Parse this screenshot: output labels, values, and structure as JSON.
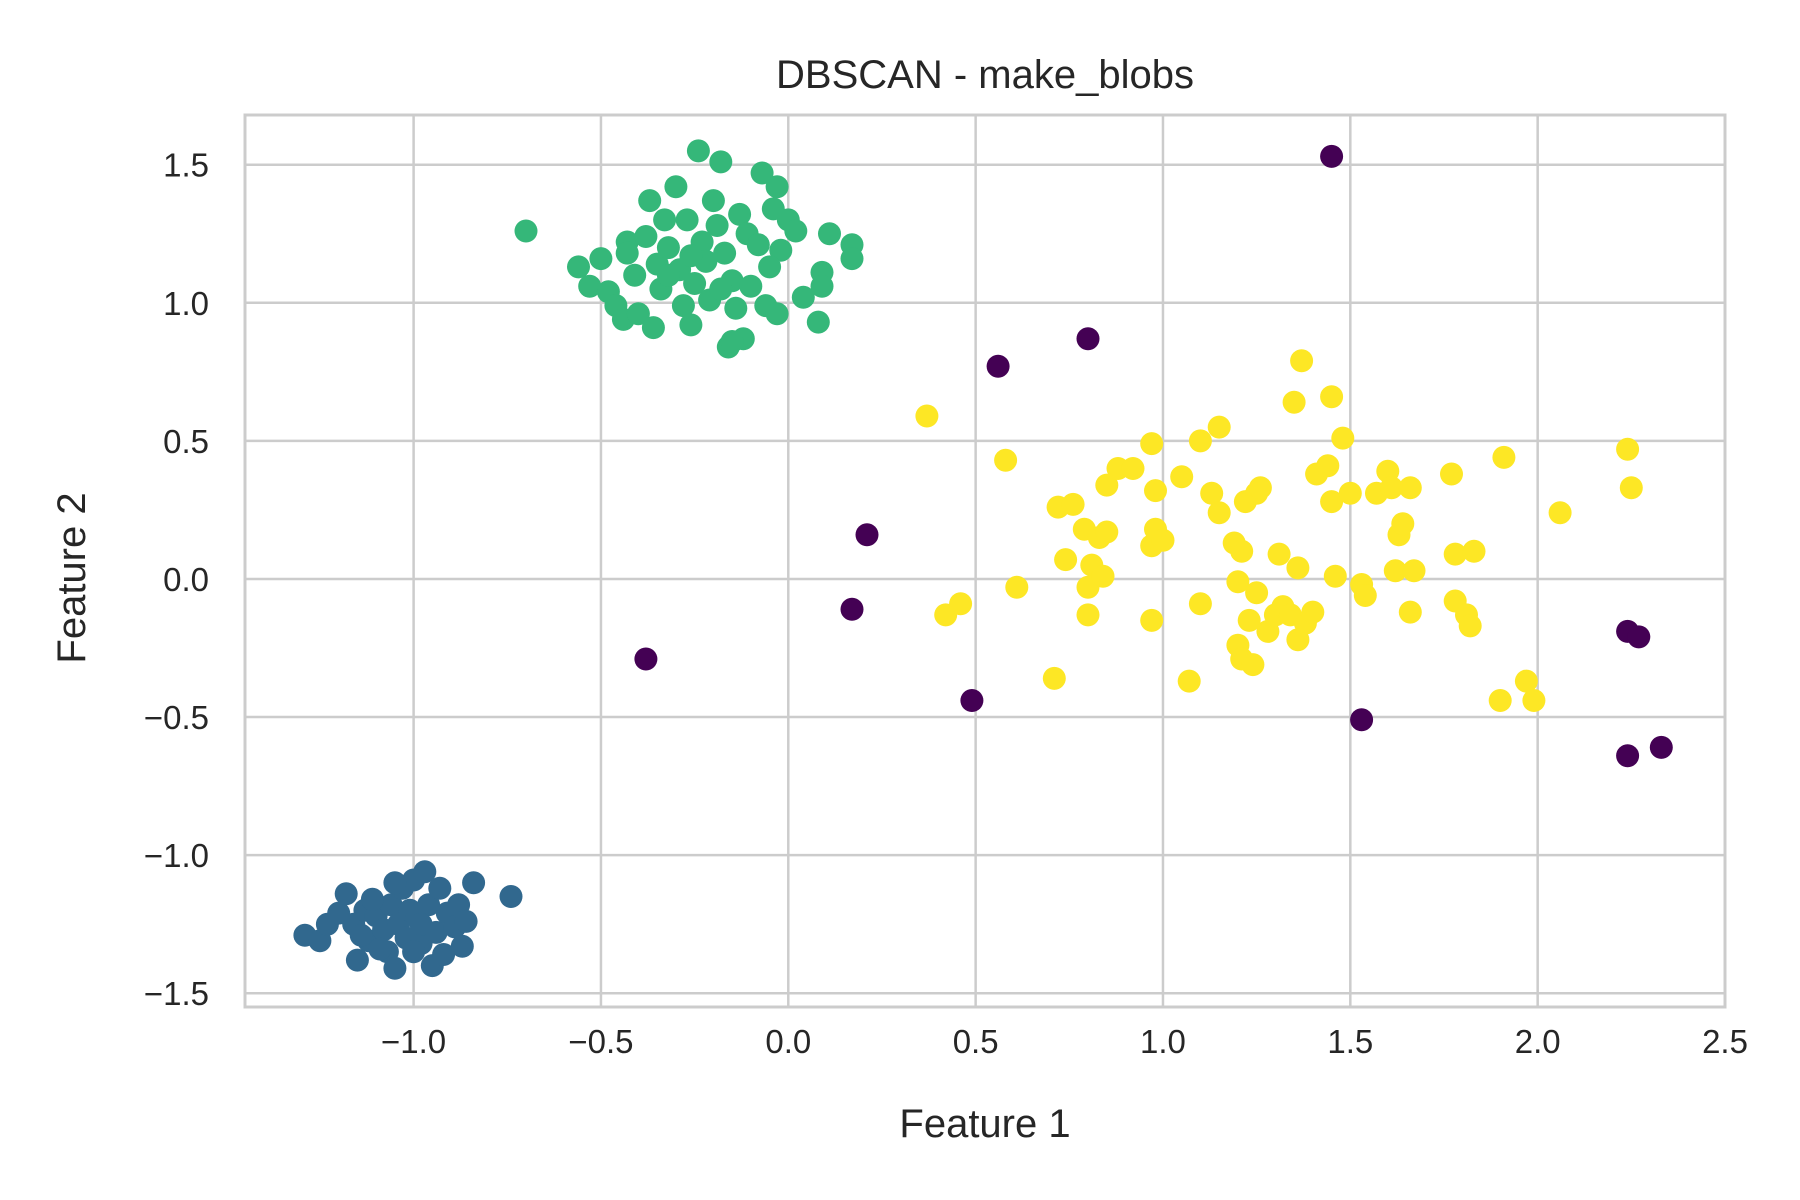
{
  "chart_data": {
    "type": "scatter",
    "title": "DBSCAN - make_blobs",
    "xlabel": "Feature 1",
    "ylabel": "Feature 2",
    "xlim": [
      -1.45,
      2.5
    ],
    "ylim": [
      -1.55,
      1.68
    ],
    "x_ticks": [
      -1.0,
      -0.5,
      0.0,
      0.5,
      1.0,
      1.5,
      2.0,
      2.5
    ],
    "x_tick_labels": [
      "−1.0",
      "−0.5",
      "0.0",
      "0.5",
      "1.0",
      "1.5",
      "2.0",
      "2.5"
    ],
    "y_ticks": [
      -1.5,
      -1.0,
      -0.5,
      0.0,
      0.5,
      1.0,
      1.5
    ],
    "y_tick_labels": [
      "−1.5",
      "−1.0",
      "−0.5",
      "0.0",
      "0.5",
      "1.0",
      "1.5"
    ],
    "grid": true,
    "legend": "none",
    "series": [
      {
        "color": "#440154",
        "points": [
          [
            1.45,
            1.53
          ],
          [
            0.8,
            0.87
          ],
          [
            0.56,
            0.77
          ],
          [
            0.21,
            0.16
          ],
          [
            0.17,
            -0.11
          ],
          [
            -0.38,
            -0.29
          ],
          [
            0.49,
            -0.44
          ],
          [
            1.53,
            -0.51
          ],
          [
            2.24,
            -0.19
          ],
          [
            2.27,
            -0.21
          ],
          [
            2.24,
            -0.64
          ],
          [
            2.33,
            -0.61
          ]
        ]
      },
      {
        "color": "#31688e",
        "points": [
          [
            -1.29,
            -1.29
          ],
          [
            -1.25,
            -1.31
          ],
          [
            -1.23,
            -1.25
          ],
          [
            -1.2,
            -1.21
          ],
          [
            -1.18,
            -1.14
          ],
          [
            -1.16,
            -1.25
          ],
          [
            -1.15,
            -1.38
          ],
          [
            -1.13,
            -1.2
          ],
          [
            -1.12,
            -1.31
          ],
          [
            -1.1,
            -1.22
          ],
          [
            -1.08,
            -1.27
          ],
          [
            -1.07,
            -1.35
          ],
          [
            -1.06,
            -1.18
          ],
          [
            -1.05,
            -1.41
          ],
          [
            -1.04,
            -1.25
          ],
          [
            -1.03,
            -1.12
          ],
          [
            -1.02,
            -1.3
          ],
          [
            -1.01,
            -1.2
          ],
          [
            -1.0,
            -1.09
          ],
          [
            -0.99,
            -1.22
          ],
          [
            -0.98,
            -1.32
          ],
          [
            -0.97,
            -1.06
          ],
          [
            -0.96,
            -1.18
          ],
          [
            -0.95,
            -1.4
          ],
          [
            -0.94,
            -1.28
          ],
          [
            -0.93,
            -1.12
          ],
          [
            -0.92,
            -1.36
          ],
          [
            -0.91,
            -1.21
          ],
          [
            -0.89,
            -1.26
          ],
          [
            -0.88,
            -1.18
          ],
          [
            -0.87,
            -1.33
          ],
          [
            -0.86,
            -1.24
          ],
          [
            -0.84,
            -1.1
          ],
          [
            -0.74,
            -1.15
          ],
          [
            -1.11,
            -1.16
          ],
          [
            -1.09,
            -1.34
          ],
          [
            -0.98,
            -1.25
          ],
          [
            -1.0,
            -1.35
          ],
          [
            -1.14,
            -1.29
          ],
          [
            -1.05,
            -1.1
          ]
        ]
      },
      {
        "color": "#35b779",
        "points": [
          [
            -0.7,
            1.26
          ],
          [
            -0.56,
            1.13
          ],
          [
            -0.53,
            1.06
          ],
          [
            -0.5,
            1.16
          ],
          [
            -0.48,
            1.04
          ],
          [
            -0.46,
            0.99
          ],
          [
            -0.44,
            0.94
          ],
          [
            -0.43,
            1.22
          ],
          [
            -0.41,
            1.1
          ],
          [
            -0.4,
            0.96
          ],
          [
            -0.38,
            1.24
          ],
          [
            -0.37,
            1.37
          ],
          [
            -0.36,
            0.91
          ],
          [
            -0.35,
            1.14
          ],
          [
            -0.34,
            1.05
          ],
          [
            -0.33,
            1.3
          ],
          [
            -0.32,
            1.2
          ],
          [
            -0.3,
            1.42
          ],
          [
            -0.29,
            1.12
          ],
          [
            -0.28,
            0.99
          ],
          [
            -0.27,
            1.3
          ],
          [
            -0.26,
            0.92
          ],
          [
            -0.25,
            1.07
          ],
          [
            -0.24,
            1.55
          ],
          [
            -0.23,
            1.22
          ],
          [
            -0.22,
            1.15
          ],
          [
            -0.21,
            1.01
          ],
          [
            -0.2,
            1.37
          ],
          [
            -0.19,
            1.28
          ],
          [
            -0.18,
            1.51
          ],
          [
            -0.17,
            1.18
          ],
          [
            -0.16,
            0.84
          ],
          [
            -0.15,
            1.08
          ],
          [
            -0.14,
            0.98
          ],
          [
            -0.13,
            1.32
          ],
          [
            -0.12,
            0.87
          ],
          [
            -0.11,
            1.25
          ],
          [
            -0.1,
            1.06
          ],
          [
            -0.08,
            1.21
          ],
          [
            -0.07,
            1.47
          ],
          [
            -0.06,
            0.99
          ],
          [
            -0.04,
            1.34
          ],
          [
            -0.03,
            1.42
          ],
          [
            -0.02,
            1.19
          ],
          [
            0.0,
            1.3
          ],
          [
            0.02,
            1.26
          ],
          [
            0.04,
            1.02
          ],
          [
            0.08,
            0.93
          ],
          [
            0.09,
            1.11
          ],
          [
            0.11,
            1.25
          ],
          [
            0.17,
            1.21
          ],
          [
            0.17,
            1.16
          ],
          [
            -0.03,
            0.96
          ],
          [
            -0.18,
            1.05
          ],
          [
            -0.26,
            1.17
          ],
          [
            -0.43,
            1.18
          ],
          [
            -0.15,
            0.86
          ],
          [
            -0.05,
            1.13
          ],
          [
            0.09,
            1.06
          ],
          [
            -0.32,
            1.1
          ]
        ]
      },
      {
        "color": "#fde725",
        "points": [
          [
            0.37,
            0.59
          ],
          [
            0.42,
            -0.13
          ],
          [
            0.46,
            -0.09
          ],
          [
            0.58,
            0.43
          ],
          [
            0.61,
            -0.03
          ],
          [
            0.71,
            -0.36
          ],
          [
            0.72,
            0.26
          ],
          [
            0.74,
            0.07
          ],
          [
            0.76,
            0.27
          ],
          [
            0.79,
            0.18
          ],
          [
            0.8,
            -0.03
          ],
          [
            0.8,
            -0.13
          ],
          [
            0.81,
            0.05
          ],
          [
            0.83,
            0.15
          ],
          [
            0.84,
            0.01
          ],
          [
            0.85,
            0.17
          ],
          [
            0.85,
            0.34
          ],
          [
            0.88,
            0.4
          ],
          [
            0.92,
            0.4
          ],
          [
            0.97,
            0.49
          ],
          [
            0.97,
            0.12
          ],
          [
            0.97,
            -0.15
          ],
          [
            0.98,
            0.32
          ],
          [
            0.98,
            0.18
          ],
          [
            1.0,
            0.14
          ],
          [
            1.05,
            0.37
          ],
          [
            1.07,
            -0.37
          ],
          [
            1.1,
            0.5
          ],
          [
            1.1,
            -0.09
          ],
          [
            1.13,
            0.31
          ],
          [
            1.15,
            0.55
          ],
          [
            1.15,
            0.24
          ],
          [
            1.19,
            0.13
          ],
          [
            1.2,
            -0.01
          ],
          [
            1.2,
            -0.24
          ],
          [
            1.21,
            0.1
          ],
          [
            1.21,
            -0.29
          ],
          [
            1.22,
            0.28
          ],
          [
            1.23,
            -0.15
          ],
          [
            1.24,
            -0.31
          ],
          [
            1.25,
            -0.05
          ],
          [
            1.25,
            0.31
          ],
          [
            1.26,
            0.33
          ],
          [
            1.28,
            -0.19
          ],
          [
            1.3,
            -0.13
          ],
          [
            1.31,
            0.09
          ],
          [
            1.32,
            -0.1
          ],
          [
            1.34,
            -0.13
          ],
          [
            1.35,
            0.64
          ],
          [
            1.36,
            0.04
          ],
          [
            1.36,
            -0.22
          ],
          [
            1.37,
            0.79
          ],
          [
            1.38,
            -0.16
          ],
          [
            1.4,
            -0.12
          ],
          [
            1.41,
            0.38
          ],
          [
            1.44,
            0.41
          ],
          [
            1.45,
            0.66
          ],
          [
            1.45,
            0.28
          ],
          [
            1.46,
            0.01
          ],
          [
            1.48,
            0.51
          ],
          [
            1.5,
            0.31
          ],
          [
            1.53,
            -0.02
          ],
          [
            1.54,
            -0.06
          ],
          [
            1.57,
            0.31
          ],
          [
            1.6,
            0.39
          ],
          [
            1.61,
            0.33
          ],
          [
            1.62,
            0.03
          ],
          [
            1.63,
            0.16
          ],
          [
            1.64,
            0.2
          ],
          [
            1.66,
            -0.12
          ],
          [
            1.66,
            0.33
          ],
          [
            1.67,
            0.03
          ],
          [
            1.77,
            0.38
          ],
          [
            1.78,
            0.09
          ],
          [
            1.78,
            -0.08
          ],
          [
            1.81,
            -0.13
          ],
          [
            1.82,
            -0.17
          ],
          [
            1.83,
            0.1
          ],
          [
            1.9,
            -0.44
          ],
          [
            1.91,
            0.44
          ],
          [
            1.97,
            -0.37
          ],
          [
            1.99,
            -0.44
          ],
          [
            2.06,
            0.24
          ],
          [
            2.24,
            0.47
          ],
          [
            2.25,
            0.33
          ]
        ]
      }
    ]
  }
}
